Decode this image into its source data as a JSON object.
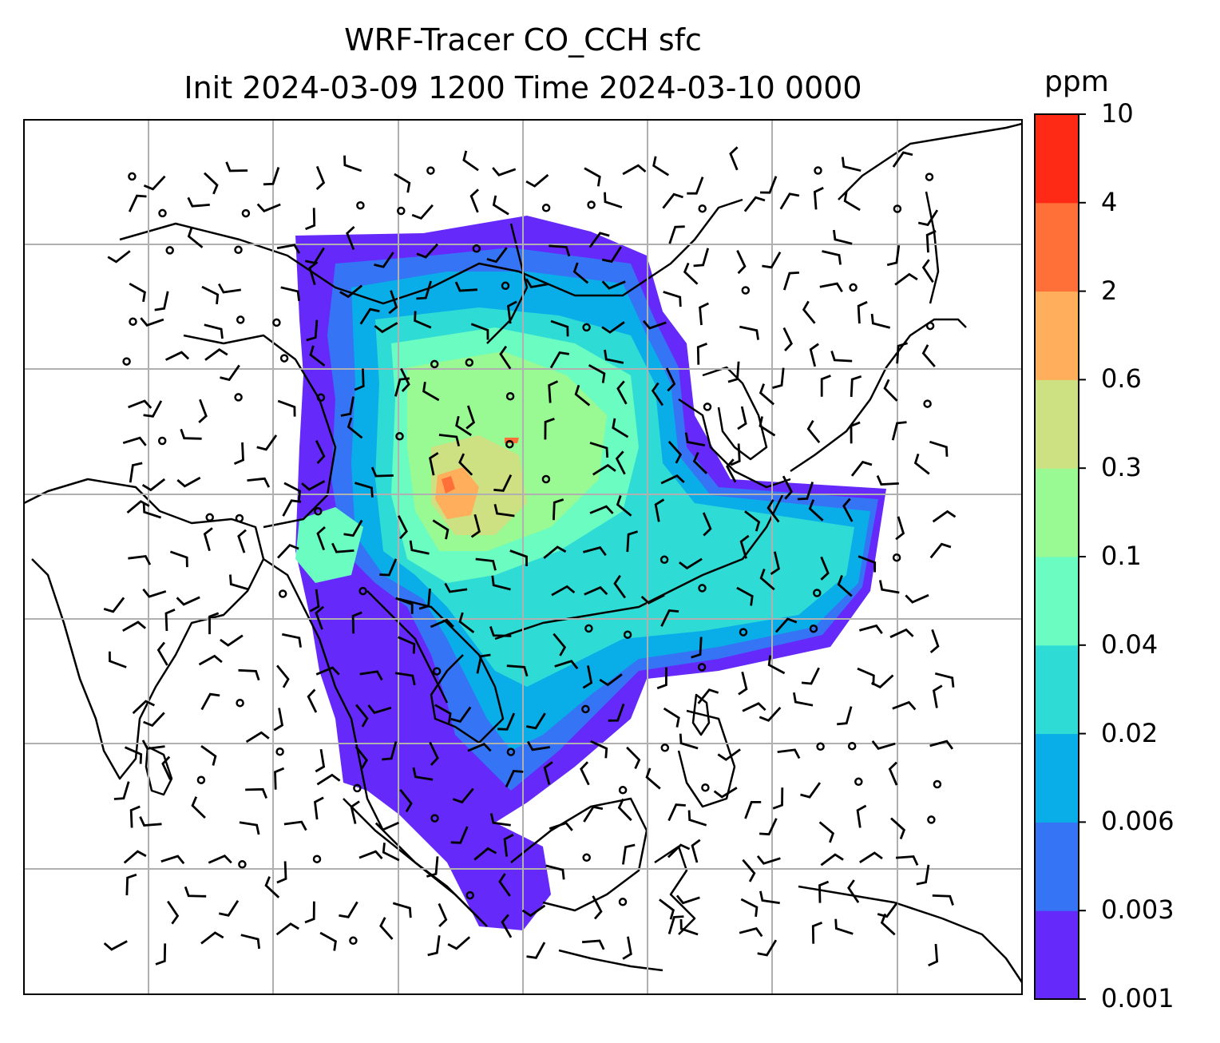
{
  "title": {
    "line1": "WRF-Tracer CO_CCH sfc",
    "line2": "Init 2024-03-09 1200 Time 2024-03-10 0000"
  },
  "colorbar": {
    "unit": "ppm",
    "levels": [
      "0.001",
      "0.003",
      "0.006",
      "0.02",
      "0.04",
      "0.1",
      "0.3",
      "0.6",
      "2",
      "4",
      "10"
    ],
    "colors": [
      "#6529fa",
      "#3574f4",
      "#09aee8",
      "#2fdcd5",
      "#6afcc0",
      "#99f993",
      "#cde182",
      "#ffae5c",
      "#ff7038",
      "#fe2a16"
    ]
  },
  "map": {
    "gridlines": true,
    "grid_color": "#b0b0b0",
    "coastline_color": "#000000",
    "wind_symbol": "barb",
    "calm_symbol": "circle"
  }
}
